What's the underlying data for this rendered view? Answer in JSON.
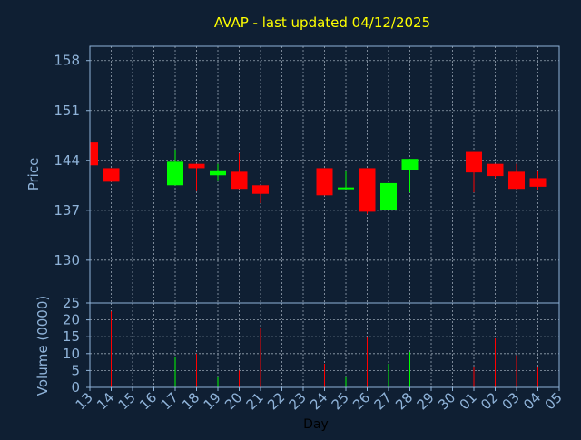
{
  "chart_data": {
    "type": "candlestick",
    "title": "AVAP - last updated 04/12/2025",
    "price_panel": {
      "ylabel": "Price",
      "ylim": [
        124,
        160
      ],
      "yticks": [
        130,
        137,
        144,
        151,
        158
      ],
      "grid": true
    },
    "volume_panel": {
      "ylabel": "Volume (0000)",
      "ylim": [
        0,
        25
      ],
      "yticks": [
        0,
        5,
        10,
        15,
        20,
        25
      ],
      "grid": true
    },
    "xlabel": "Day",
    "x_ticks": [
      "13",
      "14",
      "15",
      "16",
      "17",
      "18",
      "19",
      "20",
      "21",
      "22",
      "23",
      "24",
      "25",
      "26",
      "27",
      "28",
      "29",
      "30",
      "01",
      "02",
      "03",
      "04",
      "05"
    ],
    "colors": {
      "up": "#00ff00",
      "down": "#ff0000",
      "background": "#0f1f33",
      "axis": "#8fb3d9",
      "title": "#ffff00"
    },
    "candles": [
      {
        "day": "13",
        "open": 146.5,
        "high": 146.5,
        "low": 143.3,
        "close": 143.3
      },
      {
        "day": "14",
        "open": 142.9,
        "high": 142.9,
        "low": 141.0,
        "close": 141.0
      },
      {
        "day": "17",
        "open": 140.5,
        "high": 145.5,
        "low": 140.5,
        "close": 143.8
      },
      {
        "day": "18",
        "open": 143.5,
        "high": 143.5,
        "low": 139.8,
        "close": 142.9
      },
      {
        "day": "19",
        "open": 141.9,
        "high": 143.5,
        "low": 141.2,
        "close": 142.6
      },
      {
        "day": "20",
        "open": 142.4,
        "high": 145.0,
        "low": 140.0,
        "close": 140.0
      },
      {
        "day": "21",
        "open": 140.5,
        "high": 140.5,
        "low": 138.0,
        "close": 139.3
      },
      {
        "day": "24",
        "open": 142.9,
        "high": 142.9,
        "low": 139.1,
        "close": 139.1
      },
      {
        "day": "25",
        "open": 140.0,
        "high": 142.5,
        "low": 140.0,
        "close": 140.2
      },
      {
        "day": "26",
        "open": 142.9,
        "high": 142.9,
        "low": 136.5,
        "close": 136.8
      },
      {
        "day": "27",
        "open": 137.0,
        "high": 140.8,
        "low": 137.0,
        "close": 140.8
      },
      {
        "day": "28",
        "open": 142.7,
        "high": 144.2,
        "low": 139.5,
        "close": 144.2
      },
      {
        "day": "01",
        "open": 145.3,
        "high": 145.3,
        "low": 139.5,
        "close": 142.3
      },
      {
        "day": "02",
        "open": 143.5,
        "high": 143.5,
        "low": 141.5,
        "close": 141.8
      },
      {
        "day": "03",
        "open": 142.4,
        "high": 143.5,
        "low": 140.0,
        "close": 140.0
      },
      {
        "day": "04",
        "open": 141.5,
        "high": 142.5,
        "low": 139.9,
        "close": 140.3
      }
    ],
    "volume": [
      {
        "day": "14",
        "value": 22.5,
        "dir": "down"
      },
      {
        "day": "17",
        "value": 9.0,
        "dir": "up"
      },
      {
        "day": "18",
        "value": 10.0,
        "dir": "down"
      },
      {
        "day": "19",
        "value": 3.0,
        "dir": "up"
      },
      {
        "day": "20",
        "value": 5.0,
        "dir": "down"
      },
      {
        "day": "21",
        "value": 17.5,
        "dir": "down"
      },
      {
        "day": "24",
        "value": 7.0,
        "dir": "down"
      },
      {
        "day": "25",
        "value": 3.0,
        "dir": "up"
      },
      {
        "day": "26",
        "value": 15.0,
        "dir": "down"
      },
      {
        "day": "27",
        "value": 7.0,
        "dir": "up"
      },
      {
        "day": "28",
        "value": 10.5,
        "dir": "up"
      },
      {
        "day": "01",
        "value": 6.0,
        "dir": "down"
      },
      {
        "day": "02",
        "value": 14.5,
        "dir": "down"
      },
      {
        "day": "03",
        "value": 9.5,
        "dir": "down"
      },
      {
        "day": "04",
        "value": 6.0,
        "dir": "down"
      }
    ]
  }
}
